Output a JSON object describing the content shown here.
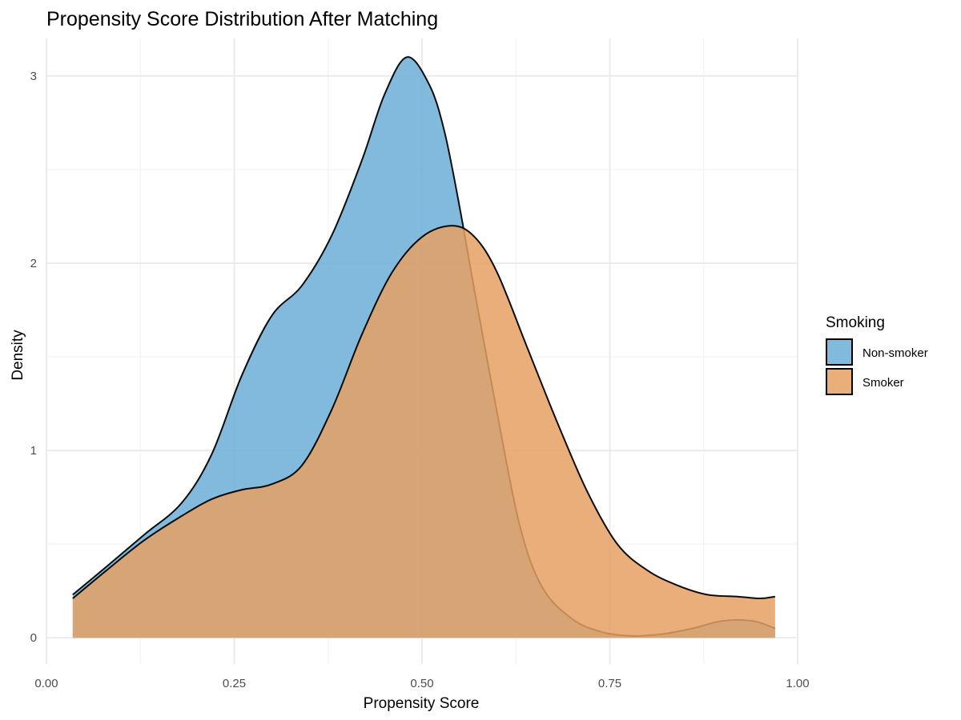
{
  "chart_data": {
    "type": "area",
    "title": "Propensity Score Distribution After Matching",
    "xlabel": "Propensity Score",
    "ylabel": "Density",
    "xlim": [
      0.0,
      1.0
    ],
    "ylim": [
      -0.14,
      3.2
    ],
    "x_ticks": [
      "0.00",
      "0.25",
      "0.50",
      "0.75",
      "1.00"
    ],
    "y_ticks": [
      "0",
      "1",
      "2",
      "3"
    ],
    "grid": true,
    "legend": {
      "title": "Smoking",
      "placement": "right"
    },
    "series": [
      {
        "name": "Non-smoker",
        "color": "#6baed6",
        "opacity": 0.85,
        "x": [
          0.035,
          0.08,
          0.13,
          0.18,
          0.22,
          0.26,
          0.3,
          0.34,
          0.38,
          0.42,
          0.45,
          0.48,
          0.51,
          0.53,
          0.55,
          0.57,
          0.6,
          0.63,
          0.66,
          0.7,
          0.74,
          0.78,
          0.82,
          0.86,
          0.9,
          0.94,
          0.97
        ],
        "y": [
          0.23,
          0.38,
          0.55,
          0.72,
          0.98,
          1.4,
          1.72,
          1.88,
          2.15,
          2.55,
          2.9,
          3.1,
          2.95,
          2.7,
          2.3,
          1.85,
          1.2,
          0.6,
          0.27,
          0.1,
          0.03,
          0.01,
          0.02,
          0.05,
          0.09,
          0.09,
          0.05
        ]
      },
      {
        "name": "Smoker",
        "color": "#e6a064",
        "opacity": 0.85,
        "x": [
          0.035,
          0.08,
          0.13,
          0.18,
          0.22,
          0.26,
          0.3,
          0.34,
          0.38,
          0.42,
          0.46,
          0.5,
          0.54,
          0.57,
          0.6,
          0.64,
          0.68,
          0.72,
          0.76,
          0.8,
          0.84,
          0.88,
          0.92,
          0.95,
          0.97
        ],
        "y": [
          0.21,
          0.36,
          0.52,
          0.65,
          0.74,
          0.79,
          0.82,
          0.92,
          1.22,
          1.62,
          1.95,
          2.14,
          2.2,
          2.14,
          1.95,
          1.55,
          1.15,
          0.78,
          0.5,
          0.36,
          0.28,
          0.23,
          0.22,
          0.21,
          0.22
        ]
      }
    ]
  }
}
